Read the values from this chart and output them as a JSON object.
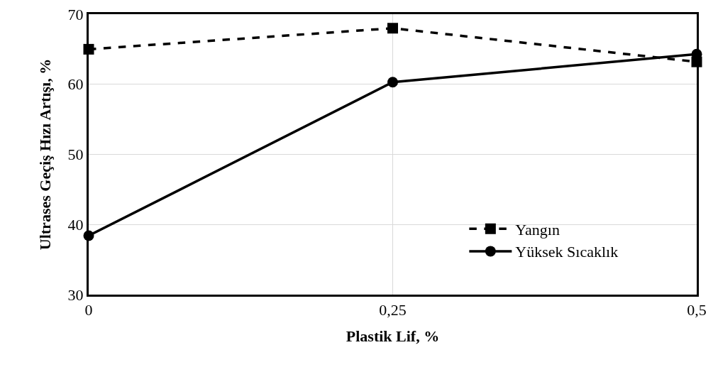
{
  "chart_data": {
    "type": "line",
    "xlabel": "Plastik Lif, %",
    "ylabel": "Ultrases Geçiş Hızı Artışı, %",
    "x": [
      0,
      0.25,
      0.5
    ],
    "xlim": [
      0,
      0.5
    ],
    "xticks": [
      {
        "value": 0,
        "label": "0"
      },
      {
        "value": 0.25,
        "label": "0,25"
      },
      {
        "value": 0.5,
        "label": "0,5"
      }
    ],
    "ylim": [
      30,
      70
    ],
    "yticks": [
      30,
      40,
      50,
      60,
      70
    ],
    "grid": true,
    "legend": "bottom right",
    "series": [
      {
        "name": "Yangın",
        "color": "#000000",
        "values": [
          65.0,
          68.0,
          63.2
        ],
        "marker": "square",
        "line_style": "dashed"
      },
      {
        "name": "Yüksek Sıcaklık",
        "color": "#000000",
        "values": [
          38.4,
          60.3,
          64.3
        ],
        "marker": "circle",
        "line_style": "solid"
      }
    ]
  }
}
